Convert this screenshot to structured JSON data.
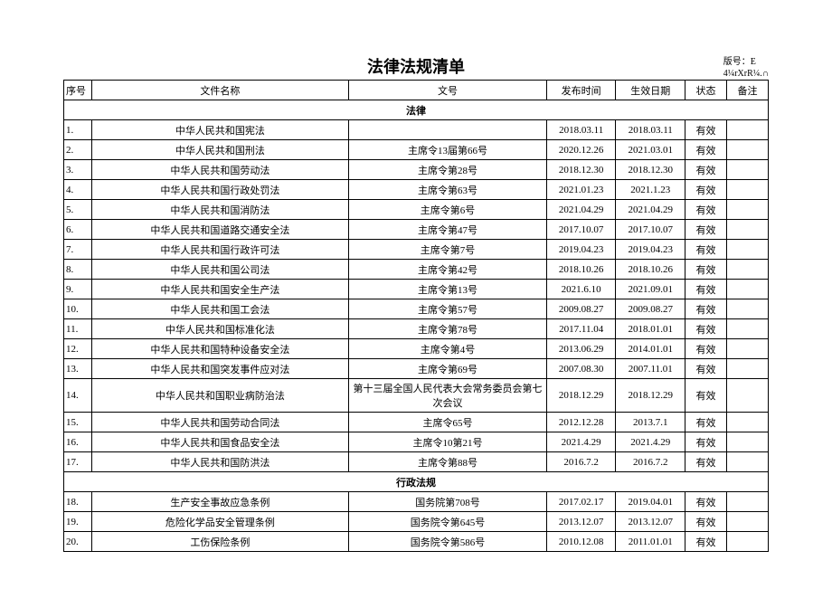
{
  "title": "法律法规清单",
  "version_line1": "版号：E",
  "version_line2": "4¼rXrR¼.∩",
  "headers": {
    "seq": "序号",
    "name": "文件名称",
    "docno": "文号",
    "pub": "发布时间",
    "eff": "生效日期",
    "status": "状态",
    "remark": "备注"
  },
  "section1": "法律",
  "section2": "行政法规",
  "rows1": [
    {
      "seq": "1.",
      "name": "中华人民共和国宪法",
      "docno": "",
      "pub": "2018.03.11",
      "eff": "2018.03.11",
      "status": "有效",
      "remark": ""
    },
    {
      "seq": "2.",
      "name": "中华人民共和国刑法",
      "docno": "主席令13届第66号",
      "pub": "2020.12.26",
      "eff": "2021.03.01",
      "status": "有效",
      "remark": ""
    },
    {
      "seq": "3.",
      "name": "中华人民共和国劳动法",
      "docno": "主席令第28号",
      "pub": "2018.12.30",
      "eff": "2018.12.30",
      "status": "有效",
      "remark": ""
    },
    {
      "seq": "4.",
      "name": "中华人民共和国行政处罚法",
      "docno": "主席令第63号",
      "pub": "2021.01.23",
      "eff": "2021.1.23",
      "status": "有效",
      "remark": ""
    },
    {
      "seq": "5.",
      "name": "中华人民共和国消防法",
      "docno": "主席令第6号",
      "pub": "2021.04.29",
      "eff": "2021.04.29",
      "status": "有效",
      "remark": ""
    },
    {
      "seq": "6.",
      "name": "中华人民共和国道路交通安全法",
      "docno": "主席令第47号",
      "pub": "2017.10.07",
      "eff": "2017.10.07",
      "status": "有效",
      "remark": ""
    },
    {
      "seq": "7.",
      "name": "中华人民共和国行政许可法",
      "docno": "主席令第7号",
      "pub": "2019.04.23",
      "eff": "2019.04.23",
      "status": "有效",
      "remark": ""
    },
    {
      "seq": "8.",
      "name": "中华人民共和国公司法",
      "docno": "主席令第42号",
      "pub": "2018.10.26",
      "eff": "2018.10.26",
      "status": "有效",
      "remark": ""
    },
    {
      "seq": "9.",
      "name": "中华人民共和国安全生产法",
      "docno": "主席令第13号",
      "pub": "2021.6.10",
      "eff": "2021.09.01",
      "status": "有效",
      "remark": ""
    },
    {
      "seq": "10.",
      "name": "中华人民共和国工会法",
      "docno": "主席令第57号",
      "pub": "2009.08.27",
      "eff": "2009.08.27",
      "status": "有效",
      "remark": ""
    },
    {
      "seq": "11.",
      "name": "中华人民共和国标准化法",
      "docno": "主席令第78号",
      "pub": "2017.11.04",
      "eff": "2018.01.01",
      "status": "有效",
      "remark": ""
    },
    {
      "seq": "12.",
      "name": "中华人民共和国特种设备安全法",
      "docno": "主席令第4号",
      "pub": "2013.06.29",
      "eff": "2014.01.01",
      "status": "有效",
      "remark": ""
    },
    {
      "seq": "13.",
      "name": "中华人民共和国突发事件应对法",
      "docno": "主席令第69号",
      "pub": "2007.08.30",
      "eff": "2007.11.01",
      "status": "有效",
      "remark": ""
    },
    {
      "seq": "14.",
      "name": "中华人民共和国职业病防治法",
      "docno": "第十三届全国人民代表大会常务委员会第七次会议",
      "pub": "2018.12.29",
      "eff": "2018.12.29",
      "status": "有效",
      "remark": ""
    },
    {
      "seq": "15.",
      "name": "中华人民共和国劳动合同法",
      "docno": "主席令65号",
      "pub": "2012.12.28",
      "eff": "2013.7.1",
      "status": "有效",
      "remark": ""
    },
    {
      "seq": "16.",
      "name": "中华人民共和国食品安全法",
      "docno": "主席令10第21号",
      "pub": "2021.4.29",
      "eff": "2021.4.29",
      "status": "有效",
      "remark": ""
    },
    {
      "seq": "17.",
      "name": "中华人民共和国防洪法",
      "docno": "主席令第88号",
      "pub": "2016.7.2",
      "eff": "2016.7.2",
      "status": "有效",
      "remark": ""
    }
  ],
  "rows2": [
    {
      "seq": "18.",
      "name": "生产安全事故应急条例",
      "docno": "国务院第708号",
      "pub": "2017.02.17",
      "eff": "2019.04.01",
      "status": "有效",
      "remark": ""
    },
    {
      "seq": "19.",
      "name": "危险化学品安全管理条例",
      "docno": "国务院令第645号",
      "pub": "2013.12.07",
      "eff": "2013.12.07",
      "status": "有效",
      "remark": ""
    },
    {
      "seq": "20.",
      "name": "工伤保险条例",
      "docno": "国务院令第586号",
      "pub": "2010.12.08",
      "eff": "2011.01.01",
      "status": "有效",
      "remark": ""
    }
  ]
}
